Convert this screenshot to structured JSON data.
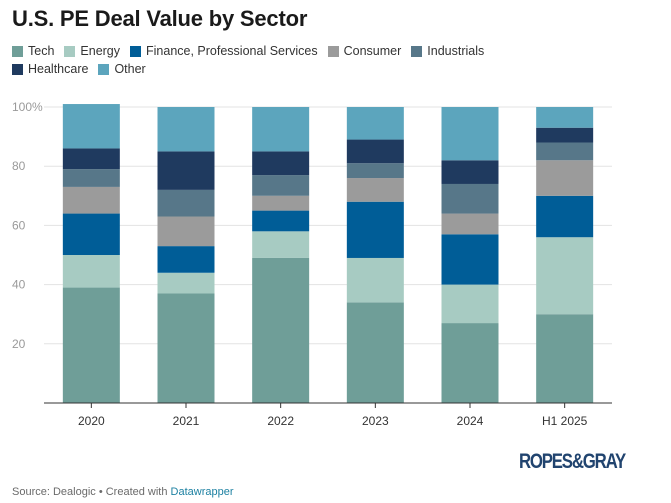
{
  "title": "U.S. PE Deal Value by Sector",
  "source_text": "Source: Dealogic • Created with ",
  "source_link": "Datawrapper",
  "logo": {
    "text_left": "ROPES",
    "ampersand": "&",
    "text_right": "GRAY"
  },
  "chart_data": {
    "type": "bar",
    "stacked": true,
    "categories": [
      "2020",
      "2021",
      "2022",
      "2023",
      "2024",
      "H1 2025"
    ],
    "ylim": [
      0,
      100
    ],
    "yticks": [
      20,
      40,
      60,
      80,
      100
    ],
    "ytick_labels": [
      "20",
      "40",
      "60",
      "80",
      "100%"
    ],
    "grid": true,
    "legend_position": "top",
    "series": [
      {
        "name": "Tech",
        "color": "#6f9e98",
        "values": [
          39,
          37,
          49,
          34,
          27,
          30
        ]
      },
      {
        "name": "Energy",
        "color": "#a7cbc2",
        "values": [
          11,
          7,
          9,
          15,
          13,
          26
        ]
      },
      {
        "name": "Finance, Professional Services",
        "color": "#005d97",
        "values": [
          14,
          9,
          7,
          19,
          17,
          14
        ]
      },
      {
        "name": "Consumer",
        "color": "#9b9b9b",
        "values": [
          9,
          10,
          5,
          8,
          7,
          12
        ]
      },
      {
        "name": "Industrials",
        "color": "#577789",
        "values": [
          6,
          9,
          7,
          5,
          10,
          6
        ]
      },
      {
        "name": "Healthcare",
        "color": "#1f3a5f",
        "values": [
          7,
          13,
          8,
          8,
          8,
          5
        ]
      },
      {
        "name": "Other",
        "color": "#5ca5bd",
        "values": [
          15,
          15,
          15,
          11,
          18,
          7
        ]
      }
    ]
  }
}
